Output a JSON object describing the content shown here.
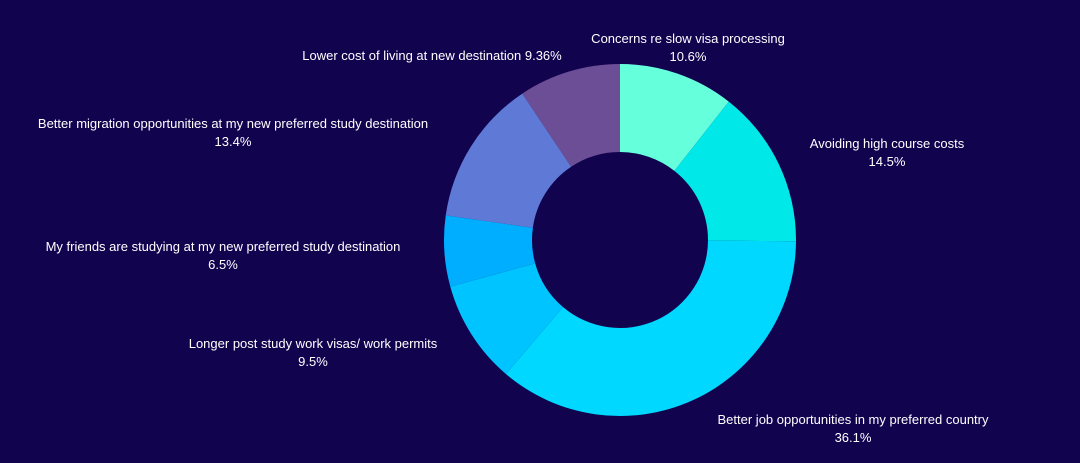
{
  "colors": {
    "background": "#12034f"
  },
  "chart_data": {
    "type": "pie",
    "donut": true,
    "start_angle_deg": 0,
    "categories": [
      "Concerns re slow visa processing",
      "Avoiding high course costs",
      "Better job opportunities in my preferred country",
      "Longer post study work visas/ work permits",
      "My friends are studying at my new preferred study destination",
      "Better migration opportunities at my new preferred study destination",
      "Lower cost of living at new destination"
    ],
    "values": [
      10.6,
      14.5,
      36.1,
      9.5,
      6.5,
      13.4,
      9.36
    ],
    "value_labels": [
      "10.6%",
      "14.5%",
      "36.1%",
      "9.5%",
      "6.5%",
      "13.4%",
      "9.36%"
    ],
    "colors": [
      "#66ffdc",
      "#00e8e8",
      "#00d8ff",
      "#00c4ff",
      "#00aeff",
      "#5f7ad6",
      "#6c4e96"
    ],
    "title": "",
    "legend": "none"
  }
}
